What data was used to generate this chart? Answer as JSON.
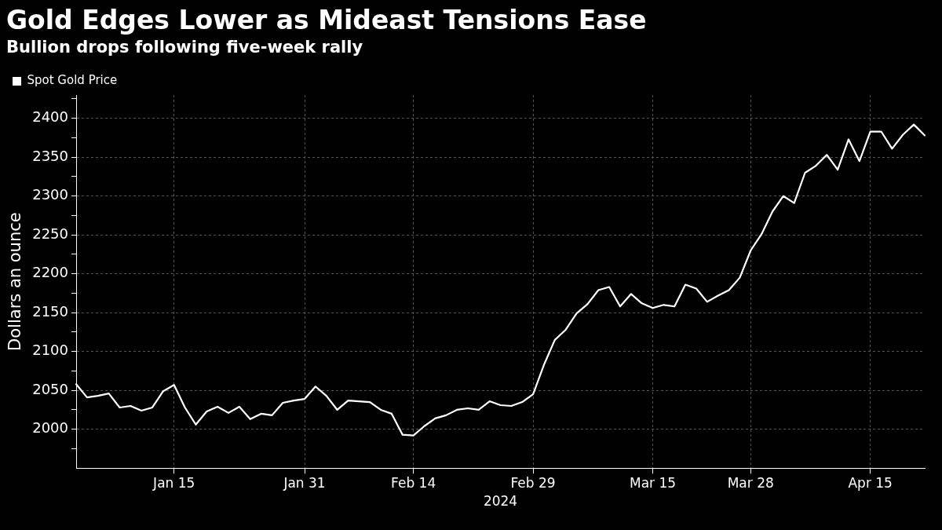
{
  "chart_data": {
    "type": "line",
    "title": "Gold Edges Lower as Mideast Tensions Ease",
    "subtitle": "Bullion drops following five-week rally",
    "xlabel": "2024",
    "ylabel": "Dollars an ounce",
    "categories": [
      null,
      null,
      null,
      null,
      null,
      null,
      null,
      null,
      null,
      "Jan 15",
      null,
      null,
      null,
      null,
      null,
      null,
      null,
      null,
      null,
      null,
      null,
      "Jan 31",
      null,
      null,
      null,
      null,
      null,
      null,
      null,
      null,
      null,
      "Feb 14",
      null,
      null,
      null,
      null,
      null,
      null,
      null,
      null,
      null,
      null,
      "Feb 29",
      null,
      null,
      null,
      null,
      null,
      null,
      null,
      null,
      null,
      null,
      "Mar 15",
      null,
      null,
      null,
      null,
      null,
      null,
      null,
      null,
      "Mar 28",
      null,
      null,
      null,
      null,
      null,
      null,
      null,
      null,
      null,
      null,
      "Apr 15",
      null,
      null,
      null,
      null,
      null
    ],
    "series": [
      {
        "name": "Spot Gold Price",
        "color": "#ffffff",
        "values": [
          2058,
          2041,
          2043,
          2046,
          2028,
          2030,
          2024,
          2028,
          2049,
          2057,
          2028,
          2006,
          2023,
          2029,
          2021,
          2029,
          2013,
          2020,
          2018,
          2034,
          2037,
          2039,
          2055,
          2043,
          2025,
          2037,
          2036,
          2035,
          2025,
          2020,
          1993,
          1992,
          2004,
          2014,
          2018,
          2025,
          2027,
          2025,
          2036,
          2031,
          2030,
          2035,
          2045,
          2083,
          2115,
          2128,
          2149,
          2161,
          2179,
          2183,
          2158,
          2174,
          2162,
          2156,
          2160,
          2158,
          2186,
          2181,
          2164,
          2172,
          2179,
          2195,
          2230,
          2251,
          2280,
          2300,
          2291,
          2330,
          2339,
          2353,
          2334,
          2373,
          2345,
          2383,
          2383,
          2361,
          2379,
          2392,
          2378
        ]
      }
    ],
    "ylim": [
      1950,
      2430
    ],
    "yticks": [
      {
        "value": 1975,
        "label": null
      },
      2000,
      {
        "value": 2025,
        "label": null
      },
      2050,
      {
        "value": 2075,
        "label": null
      },
      2100,
      {
        "value": 2125,
        "label": null
      },
      2150,
      {
        "value": 2175,
        "label": null
      },
      2200,
      {
        "value": 2225,
        "label": null
      },
      2250,
      {
        "value": 2275,
        "label": null
      },
      2300,
      {
        "value": 2325,
        "label": null
      },
      2350,
      {
        "value": 2375,
        "label": null
      },
      2400,
      {
        "value": 2425,
        "label": null
      }
    ],
    "grid": true,
    "legend": "top left",
    "marker": "none",
    "line_style": "solid"
  }
}
